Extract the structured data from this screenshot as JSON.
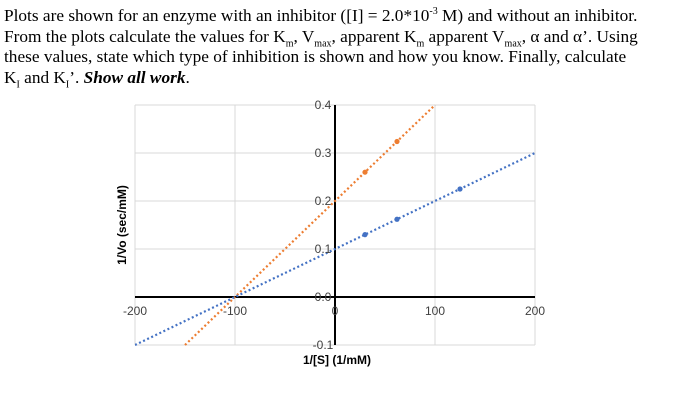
{
  "problem": {
    "p1": "Plots are shown for an enzyme with an inhibitor ([I] = 2.0*10",
    "p1_sup": "-3",
    "p2": " M) and without an inhibitor.",
    "p3": "From the plots calculate the values for K",
    "p3_sub": "m",
    "p4": ", V",
    "p4_sub": "max",
    "p5": ", apparent K",
    "p5_sub": "m",
    "p6": " apparent V",
    "p6_sub": "max",
    "p7": ", α and α’.  Using",
    "p8": "these values, state which type of inhibition is shown and how you know.  Finally, calculate",
    "p9": "K",
    "p9_sub": "I",
    "p10": " and K",
    "p10_sub": "I",
    "p11": "’. ",
    "p12": "Show all work",
    "p13": "."
  },
  "chart_data": {
    "type": "line",
    "xlabel": "1/[S] (1/mM)",
    "ylabel": "1/Vo (sec/mM)",
    "xlim": [
      -200,
      200
    ],
    "ylim": [
      -0.1,
      0.4
    ],
    "xticks": [
      "-200",
      "-100",
      "0",
      "100",
      "200"
    ],
    "yticks": [
      "-0.1",
      "0.0",
      "0.1",
      "0.2",
      "0.3",
      "0.4"
    ],
    "grid": true,
    "series": [
      {
        "color": "#ED7D31",
        "style": "dotted-trendline",
        "line_x": [
          -150,
          100
        ],
        "line_y": [
          -0.1,
          0.4
        ],
        "points_x": [
          30,
          62
        ],
        "points_y": [
          0.26,
          0.324
        ]
      },
      {
        "color": "#4472C4",
        "style": "dotted-trendline",
        "line_x": [
          -200,
          200
        ],
        "line_y": [
          -0.1,
          0.3
        ],
        "points_x": [
          30,
          62,
          125
        ],
        "points_y": [
          0.13,
          0.162,
          0.225
        ]
      }
    ]
  }
}
